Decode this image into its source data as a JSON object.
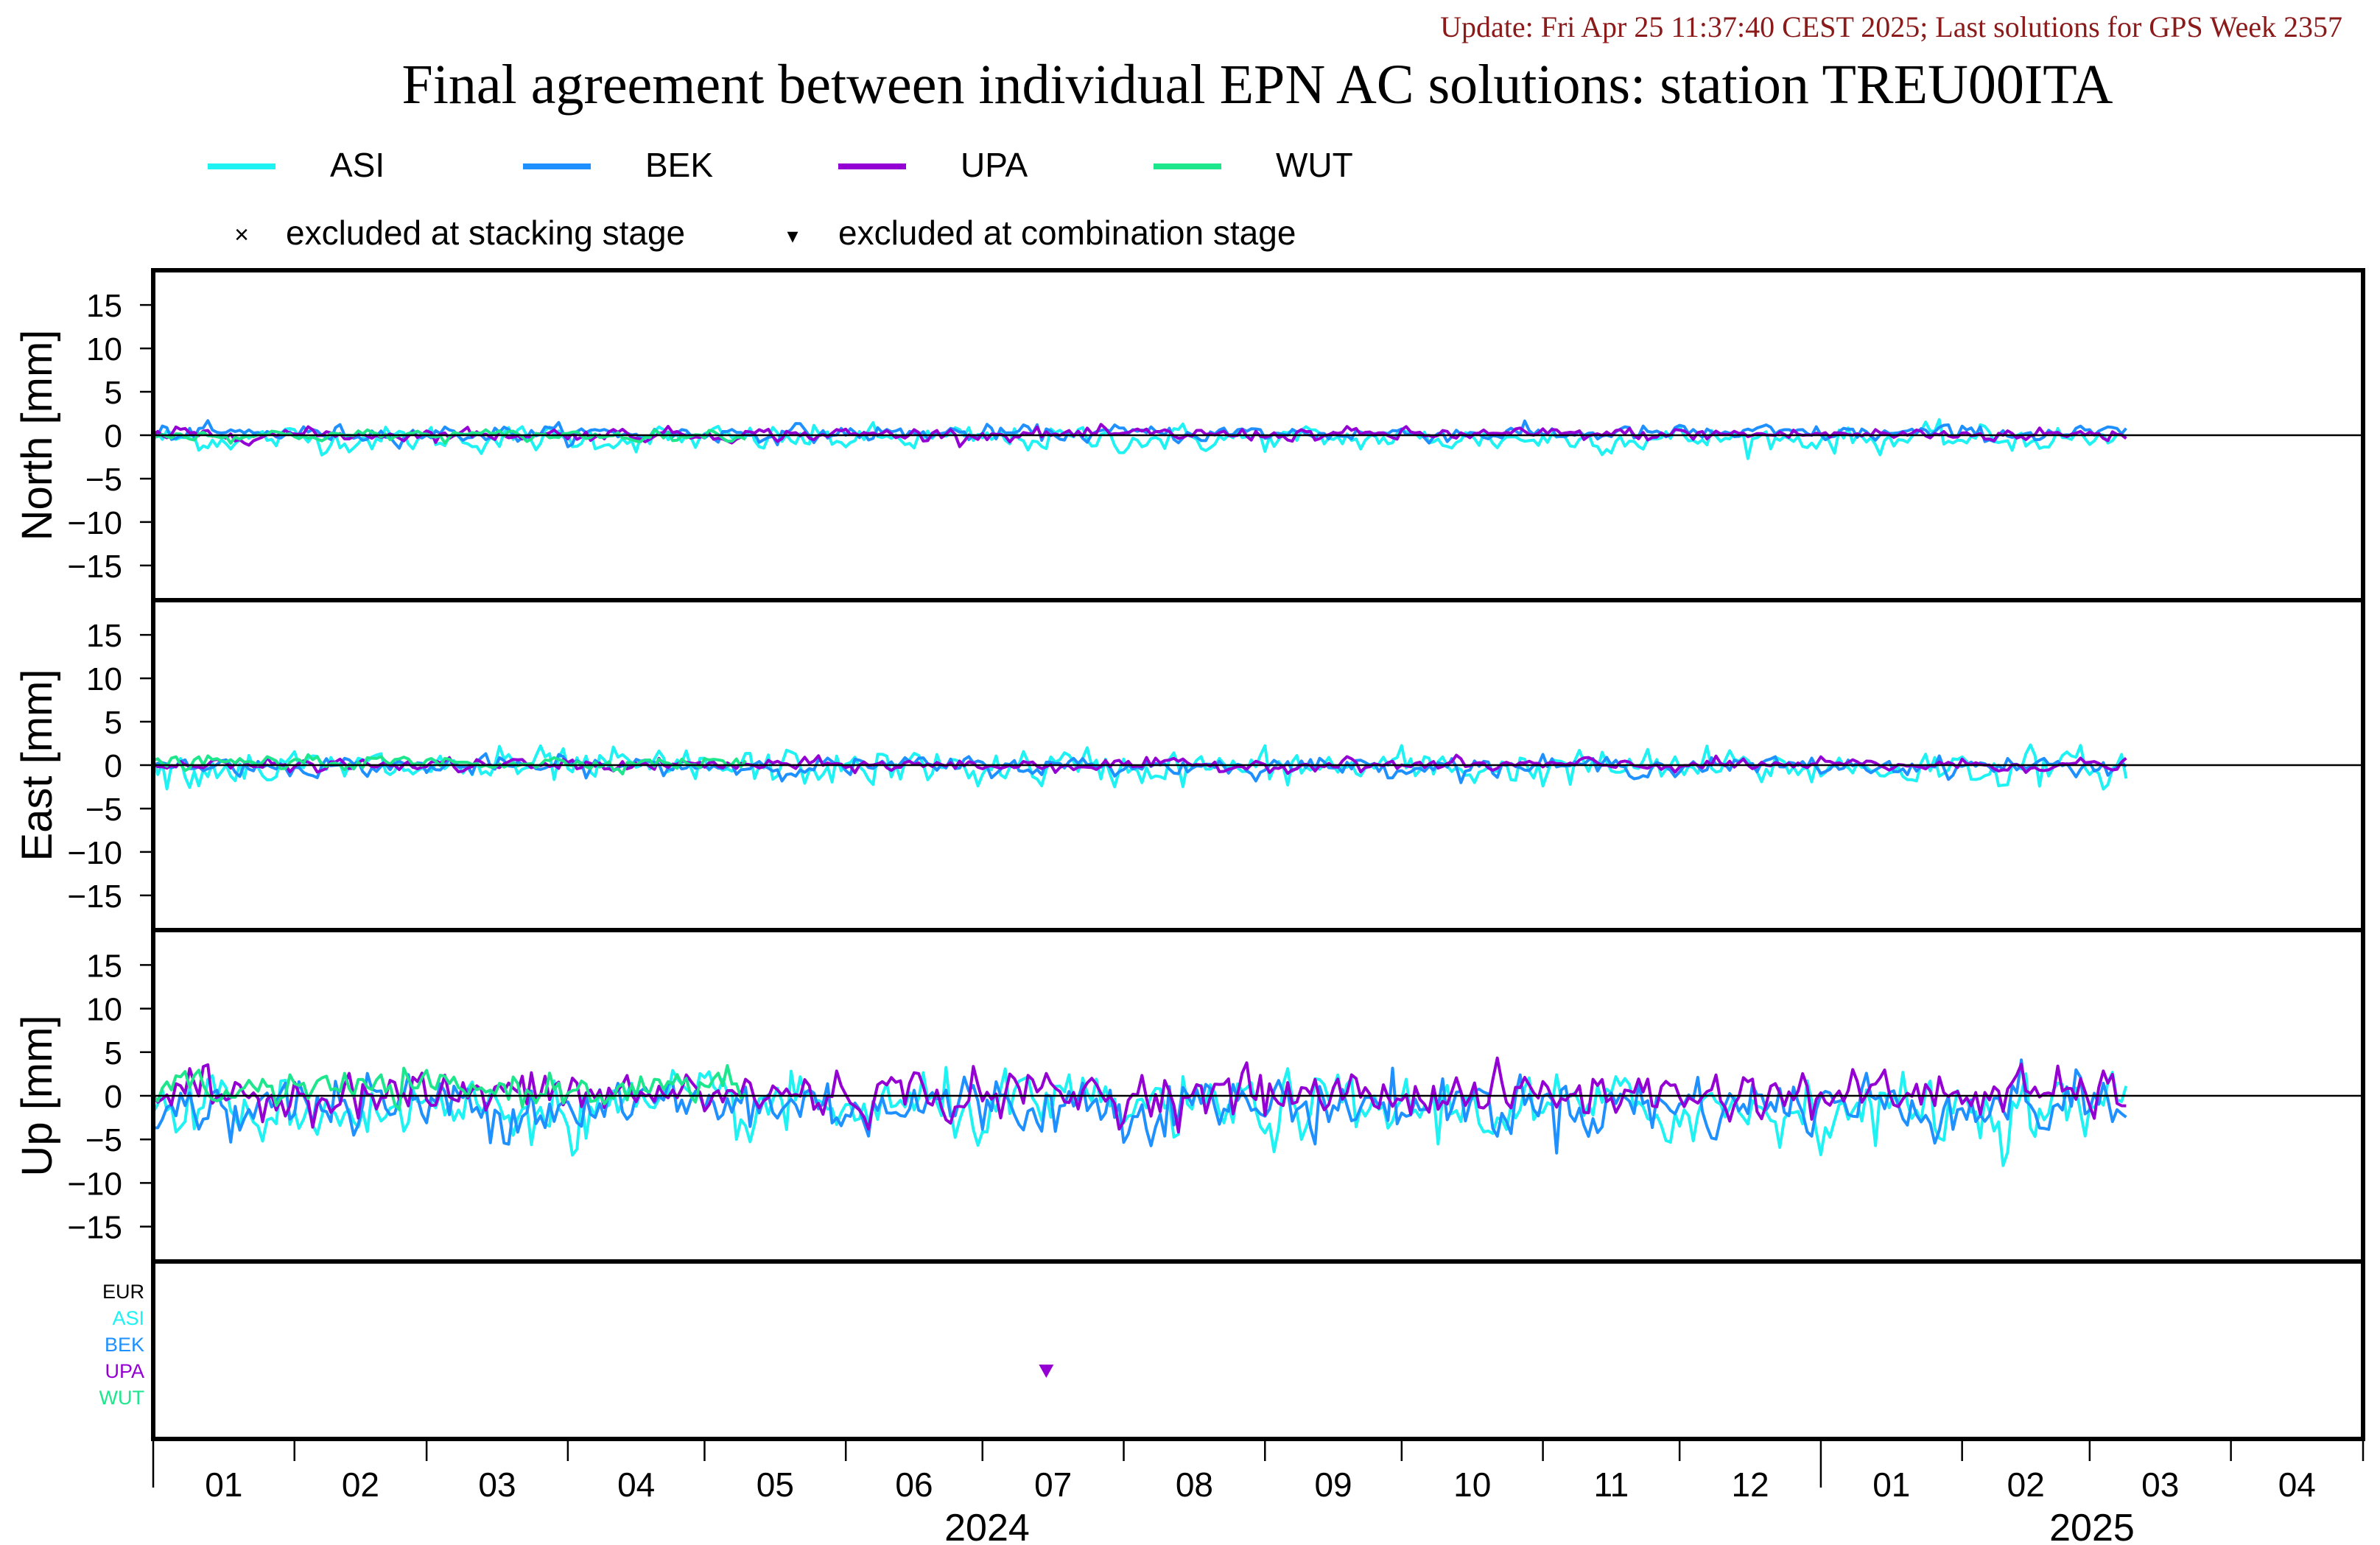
{
  "update_text": "Update: Fri Apr 25 11:37:40 CEST 2025; Last solutions for GPS Week 2357",
  "title": "Final agreement between individual EPN AC solutions: station TREU00ITA",
  "colors": {
    "ASI": "#1ef2f2",
    "BEK": "#1e90ff",
    "UPA": "#9400d3",
    "WUT": "#1ee68c",
    "EUR": "#000000",
    "update": "#8b1a1a",
    "frame": "#000000"
  },
  "legend": {
    "series": [
      {
        "name": "ASI",
        "color_key": "ASI"
      },
      {
        "name": "BEK",
        "color_key": "BEK"
      },
      {
        "name": "UPA",
        "color_key": "UPA"
      },
      {
        "name": "WUT",
        "color_key": "WUT"
      }
    ],
    "markers": [
      {
        "symbol": "×",
        "label": "excluded at stacking stage"
      },
      {
        "symbol": "▾",
        "label": "excluded at combination stage"
      }
    ]
  },
  "exclusion_panel": {
    "labels": [
      "EUR",
      "ASI",
      "BEK",
      "UPA",
      "WUT"
    ],
    "events": [
      {
        "ac": "UPA",
        "stage": "combination",
        "date": "2024-07-15"
      }
    ]
  },
  "x_axis": {
    "start": "2024-01-01",
    "end": "2025-04-30",
    "month_labels": [
      "01",
      "02",
      "03",
      "04",
      "05",
      "06",
      "07",
      "08",
      "09",
      "10",
      "11",
      "12",
      "01",
      "02",
      "03",
      "04"
    ],
    "year_labels": [
      "2024",
      "2025"
    ]
  },
  "chart_data": [
    {
      "type": "line",
      "ylabel": "North [mm]",
      "ylim": [
        -19,
        19
      ],
      "yticks": [
        -15,
        -10,
        -5,
        0,
        5,
        10,
        15
      ],
      "x_range": [
        "2024-01-01",
        "2025-03-09"
      ],
      "series": [
        {
          "name": "ASI",
          "mean": -0.4,
          "sigma": 0.7
        },
        {
          "name": "BEK",
          "mean": 0.2,
          "sigma": 0.45
        },
        {
          "name": "UPA",
          "mean": 0.1,
          "sigma": 0.35
        },
        {
          "name": "WUT",
          "mean": 0.0,
          "sigma": 0.3,
          "x_range": [
            "2024-01-01",
            "2024-05-10"
          ]
        }
      ]
    },
    {
      "type": "line",
      "ylabel": "East [mm]",
      "ylim": [
        -19,
        19
      ],
      "yticks": [
        -15,
        -10,
        -5,
        0,
        5,
        10,
        15
      ],
      "x_range": [
        "2024-01-01",
        "2025-03-09"
      ],
      "series": [
        {
          "name": "ASI",
          "mean": -0.3,
          "sigma": 1.0
        },
        {
          "name": "BEK",
          "mean": -0.1,
          "sigma": 0.5
        },
        {
          "name": "UPA",
          "mean": 0.0,
          "sigma": 0.35
        },
        {
          "name": "WUT",
          "mean": 0.3,
          "sigma": 0.35,
          "x_range": [
            "2024-01-01",
            "2024-05-10"
          ]
        }
      ]
    },
    {
      "type": "line",
      "ylabel": "Up [mm]",
      "ylim": [
        -19,
        19
      ],
      "yticks": [
        -15,
        -10,
        -5,
        0,
        5,
        10,
        15
      ],
      "x_range": [
        "2024-01-01",
        "2025-03-09"
      ],
      "series": [
        {
          "name": "ASI",
          "mean": -1.5,
          "sigma": 1.8
        },
        {
          "name": "BEK",
          "mean": -1.0,
          "sigma": 1.7
        },
        {
          "name": "UPA",
          "mean": 0.2,
          "sigma": 1.3
        },
        {
          "name": "WUT",
          "mean": 0.8,
          "sigma": 0.9,
          "x_range": [
            "2024-01-01",
            "2024-05-10"
          ]
        }
      ]
    }
  ]
}
